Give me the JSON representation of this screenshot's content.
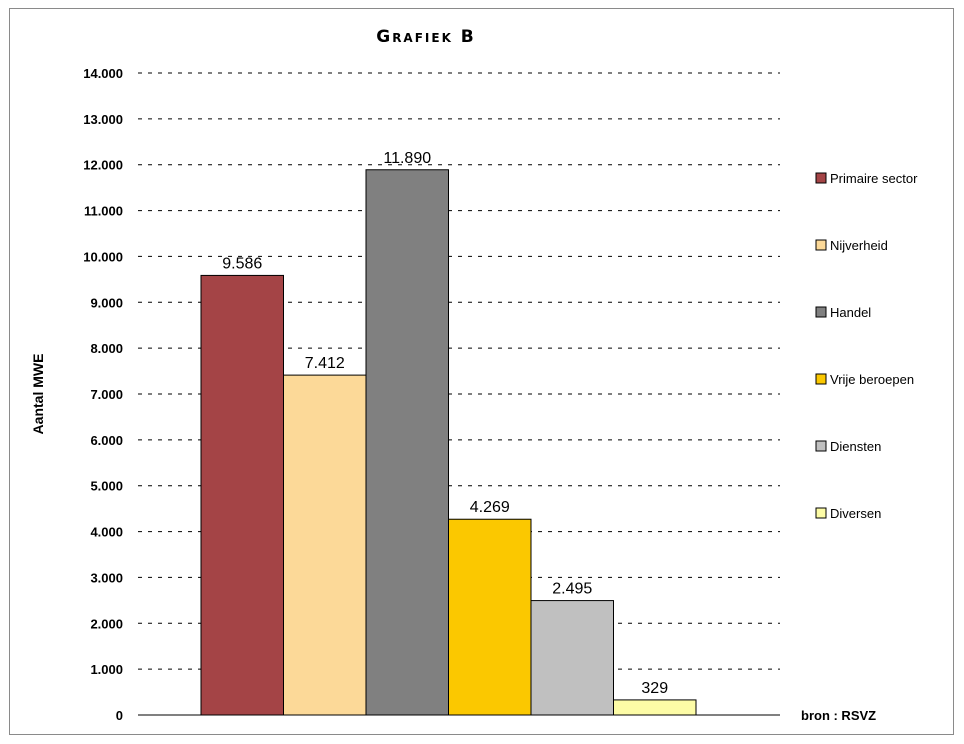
{
  "chart_data": {
    "type": "bar",
    "title": "Grafiek B",
    "ylabel": "Aantal MWE",
    "xlabel": "",
    "categories": [
      "Primaire sector",
      "Nijverheid",
      "Handel",
      "Vrije beroepen",
      "Diensten",
      "Diversen"
    ],
    "values": [
      9586,
      7412,
      11890,
      4269,
      2495,
      329
    ],
    "value_labels": [
      "9.586",
      "7.412",
      "11.890",
      "4.269",
      "2.495",
      "329"
    ],
    "colors": [
      "#a44446",
      "#fcd998",
      "#808080",
      "#fbc800",
      "#c0c0c0",
      "#fdfca6"
    ],
    "ylim": [
      0,
      14000
    ],
    "yticks": [
      0,
      1000,
      2000,
      3000,
      4000,
      5000,
      6000,
      7000,
      8000,
      9000,
      10000,
      11000,
      12000,
      13000,
      14000
    ],
    "ytick_labels": [
      "0",
      "1.000",
      "2.000",
      "3.000",
      "4.000",
      "5.000",
      "6.000",
      "7.000",
      "8.000",
      "9.000",
      "10.000",
      "11.000",
      "12.000",
      "13.000",
      "14.000"
    ],
    "grid": "dashed horizontal",
    "legend_position": "right",
    "source_note": "bron : RSVZ"
  }
}
